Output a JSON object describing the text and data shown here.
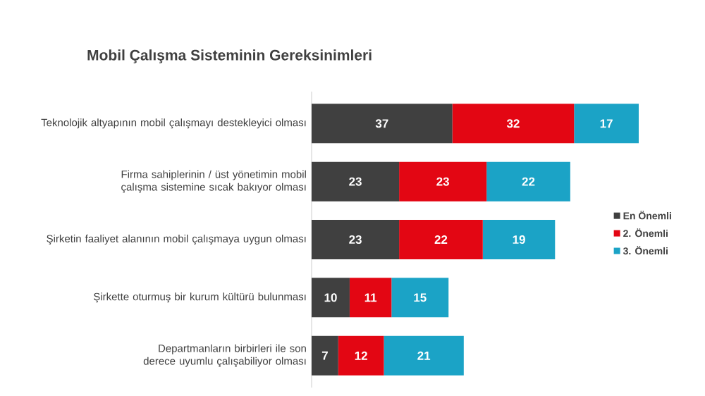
{
  "chart_data": {
    "type": "bar",
    "orientation": "horizontal",
    "stacked": true,
    "data_labels": true,
    "legend": "right",
    "title": "Mobil Çalışma Sisteminin Gereksinimleri",
    "categories": [
      "Teknolojik altyapının mobil çalışmayı destekleyici olması",
      "Firma sahiplerinin / üst yönetimin mobil çalışma sistemine sıcak bakıyor olması",
      "Şirketin faaliyet alanının mobil çalışmaya uygun olması",
      "Şirkette oturmuş bir kurum kültürü bulunması",
      "Departmanların birbirleri ile son derece uyumlu çalışabiliyor olması"
    ],
    "series": [
      {
        "name": "En Önemli",
        "color": "#404040",
        "values": [
          37,
          23,
          23,
          10,
          7
        ]
      },
      {
        "name": "2. Önemli",
        "color": "#e30613",
        "values": [
          32,
          23,
          22,
          11,
          12
        ]
      },
      {
        "name": "3. Önemli",
        "color": "#1ba3c6",
        "values": [
          17,
          22,
          19,
          15,
          21
        ]
      }
    ]
  }
}
